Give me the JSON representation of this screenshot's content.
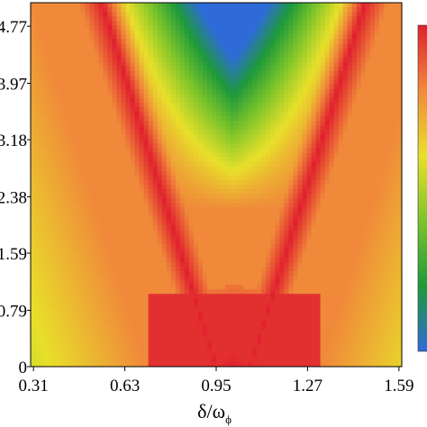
{
  "chart_data": {
    "type": "heatmap",
    "title": "",
    "xlabel": "δ/ω",
    "xlabel_subscript": "ϕ",
    "ylabel": "",
    "x_ticks": [
      "0.31",
      "0.63",
      "0.95",
      "1.27",
      "1.59"
    ],
    "x_tick_values": [
      0.31,
      0.63,
      0.95,
      1.27,
      1.59
    ],
    "xlim": [
      0.3,
      1.6
    ],
    "y_ticks": [
      "0",
      "0.79",
      "1.59",
      "2.38",
      "3.18",
      "3.97",
      "4.77"
    ],
    "y_tick_values": [
      0,
      0.79,
      1.59,
      2.38,
      3.18,
      3.97,
      4.77
    ],
    "ylim": [
      0,
      5.1
    ],
    "colorscale": [
      "#2f6bd8",
      "#1e9a3a",
      "#7cc42a",
      "#e8e02a",
      "#f08a3a",
      "#e0202e"
    ],
    "colorbar": true,
    "ridge": {
      "center_x": 1.01,
      "min_width": 0.06,
      "max_width": 0.46,
      "peak_y": 0.0
    },
    "trough": {
      "center_x": 1.01,
      "top_y": 5.1,
      "floor_y": 2.2
    },
    "grid": false,
    "legend": "colorbar-right"
  }
}
